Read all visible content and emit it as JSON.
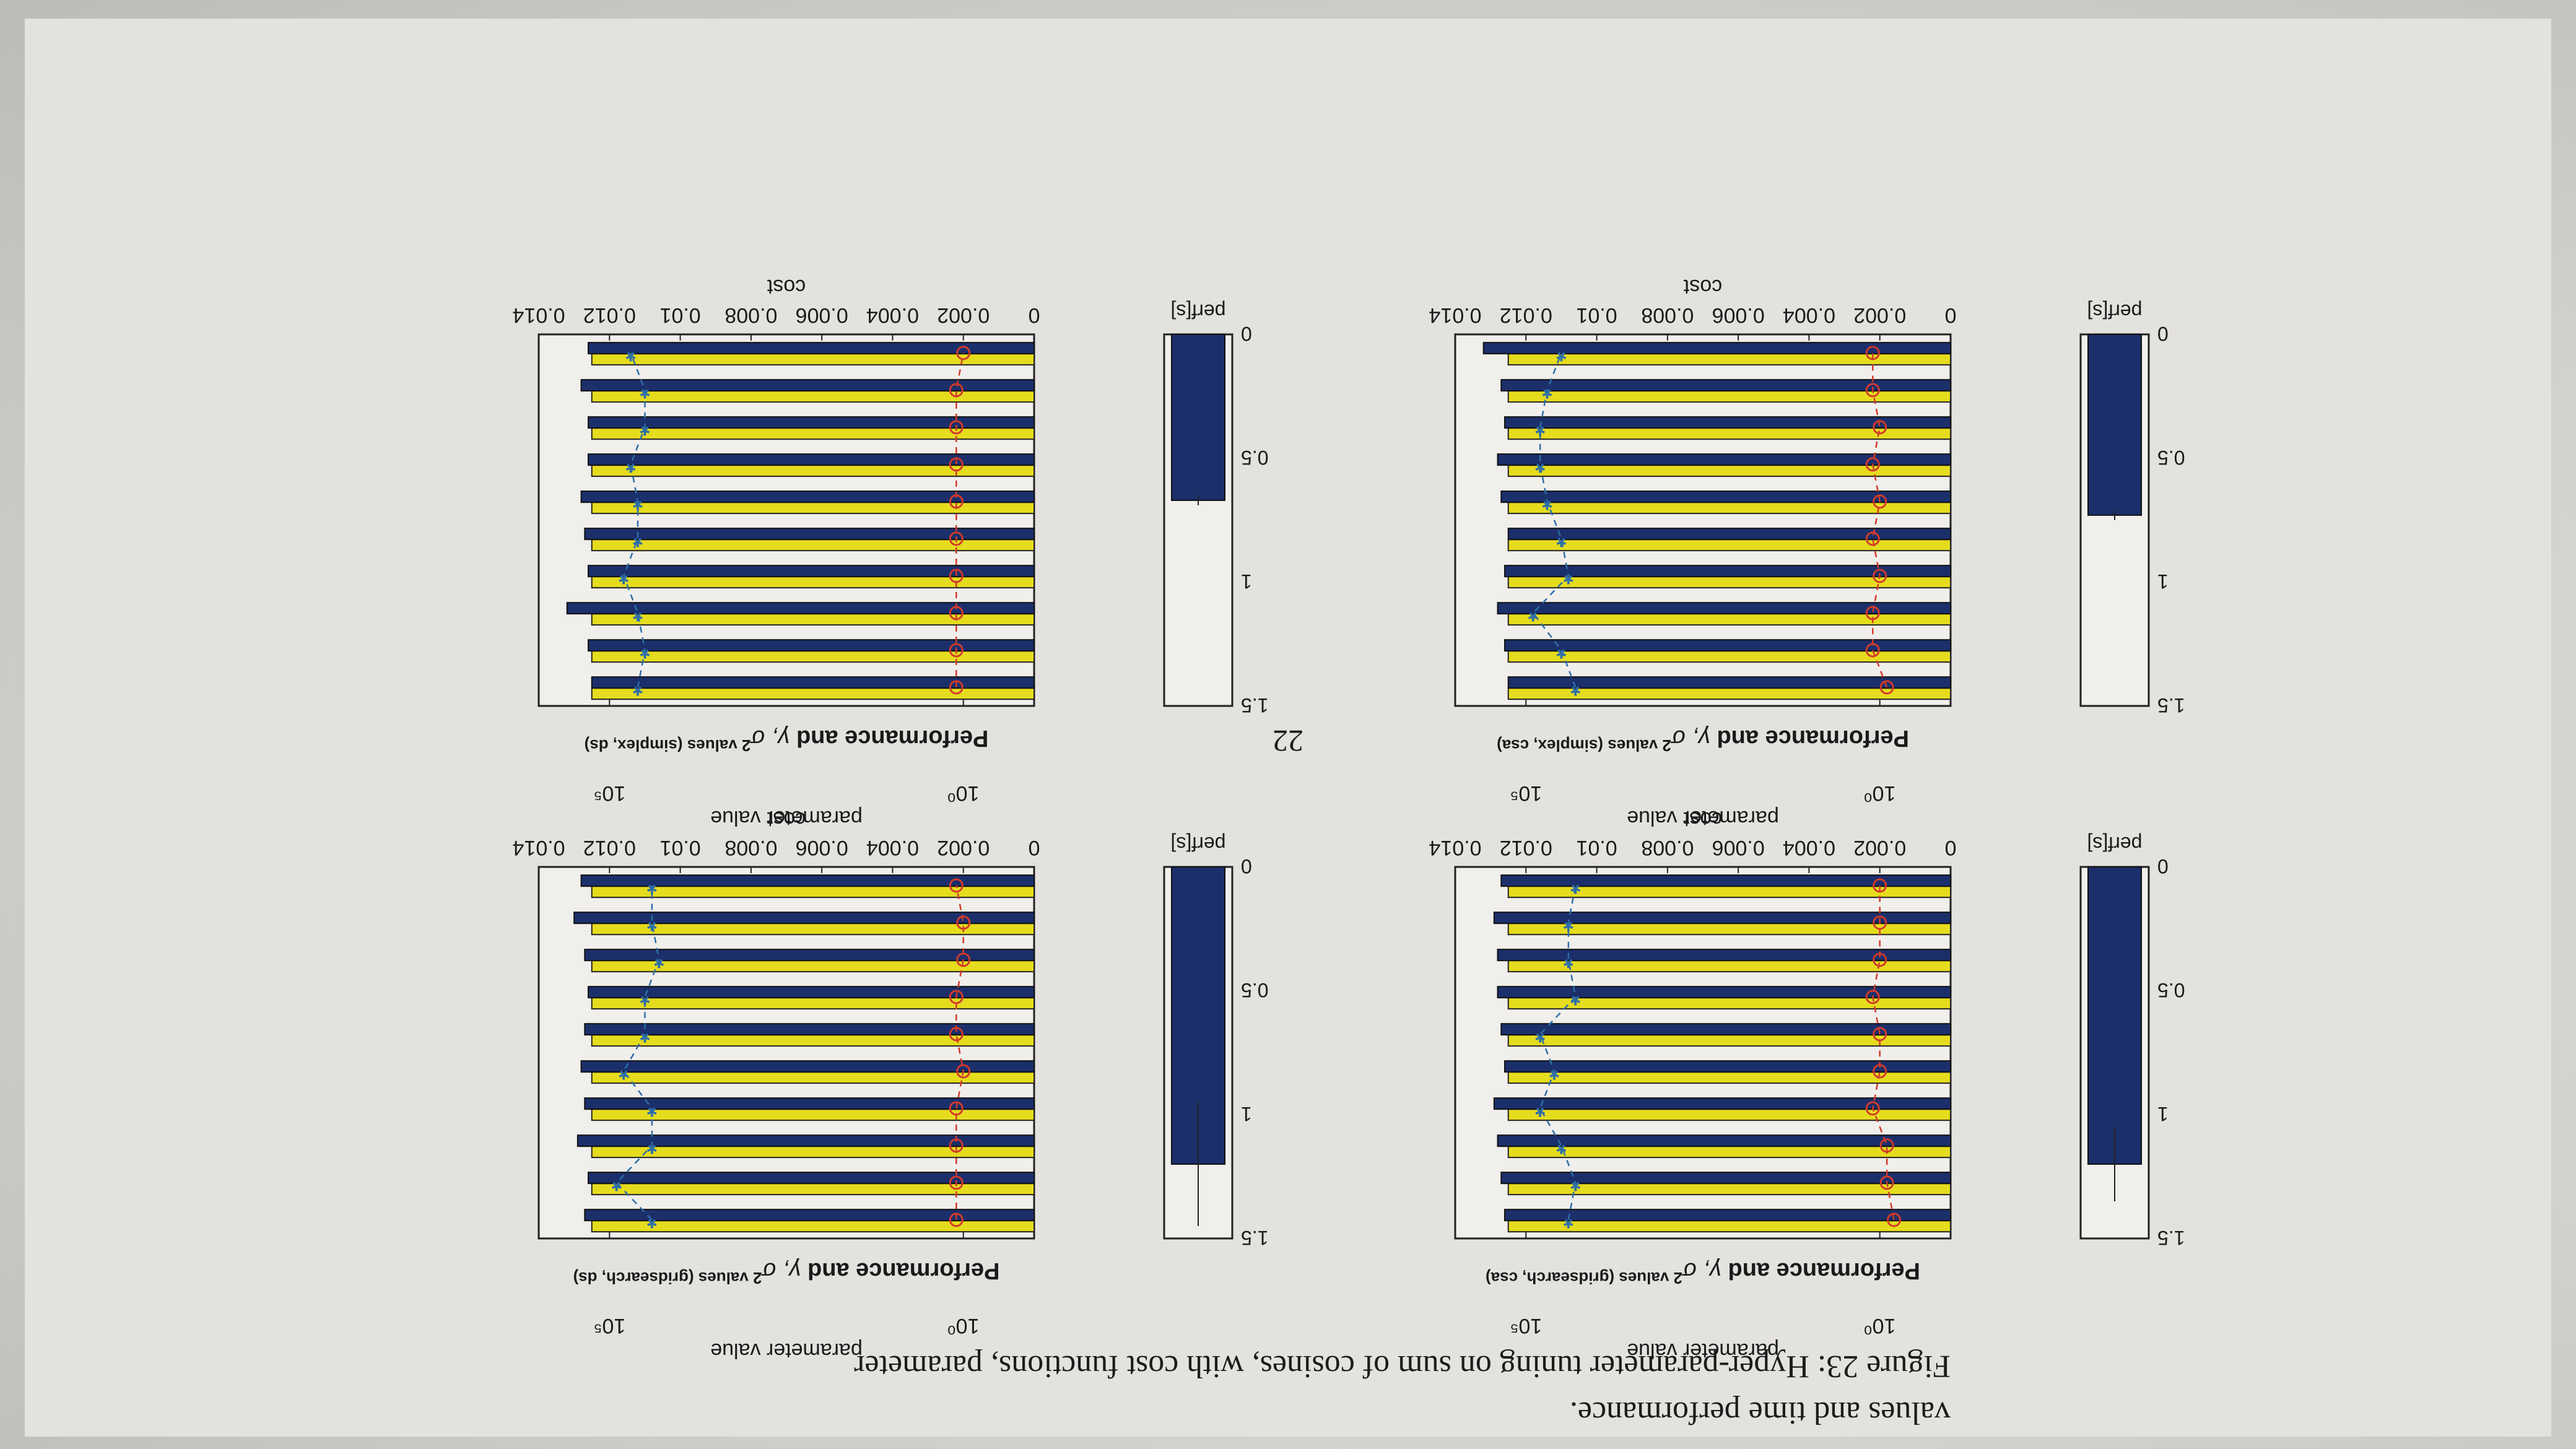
{
  "page": {
    "number": "22",
    "caption_line1": "Figure 23: Hyper-parameter tuning on sum of cosines, with cost functions, parameter",
    "caption_line2": "values and time performance."
  },
  "colors": {
    "yellow": "#e6dc1e",
    "navy": "#1b2f6b",
    "red": "#d23a2a",
    "blue": "#2d6fa8",
    "frame": "#222222"
  },
  "panels": [
    {
      "title_prefix": "Performance and ",
      "title_sym": "γ, σ",
      "title_suffix": "2 values (gridsearch, csa)",
      "cost_label": "cost",
      "param_label": "parameter value",
      "perf_label": "perf[s]",
      "cost_ticks": [
        "0",
        "0.002",
        "0.004",
        "0.006",
        "0.008",
        "0.01",
        "0.012",
        "0.014"
      ],
      "param_ticks": [
        "10⁰",
        "10⁵"
      ],
      "perf_ticks": [
        "0",
        "0.5",
        "1",
        "1.5"
      ]
    },
    {
      "title_prefix": "Performance and ",
      "title_sym": "γ, σ",
      "title_suffix": "2 values (gridsearch, ds)",
      "cost_label": "cost",
      "param_label": "parameter value",
      "perf_label": "perf[s]",
      "cost_ticks": [
        "0",
        "0.002",
        "0.004",
        "0.006",
        "0.008",
        "0.01",
        "0.012",
        "0.014"
      ],
      "param_ticks": [
        "10⁰",
        "10⁵"
      ],
      "perf_ticks": [
        "0",
        "0.5",
        "1",
        "1.5"
      ]
    },
    {
      "title_prefix": "Performance and ",
      "title_sym": "γ, σ",
      "title_suffix": "2 values (simplex, csa)",
      "cost_label": "cost",
      "param_label": "parameter value",
      "perf_label": "perf[s]",
      "cost_ticks": [
        "0",
        "0.002",
        "0.004",
        "0.006",
        "0.008",
        "0.01",
        "0.012",
        "0.014"
      ],
      "param_ticks": [
        "10⁰",
        "10⁵"
      ],
      "perf_ticks": [
        "0",
        "0.5",
        "1",
        "1.5"
      ]
    },
    {
      "title_prefix": "Performance and ",
      "title_sym": "γ, σ",
      "title_suffix": "2 values (simplex, ds)",
      "cost_label": "cost",
      "param_label": "parameter value",
      "perf_label": "perf[s]",
      "cost_ticks": [
        "0",
        "0.002",
        "0.004",
        "0.006",
        "0.008",
        "0.01",
        "0.012",
        "0.014"
      ],
      "param_ticks": [
        "10⁰",
        "10⁵"
      ],
      "perf_ticks": [
        "0",
        "0.5",
        "1",
        "1.5"
      ]
    }
  ],
  "chart_data": [
    {
      "type": "bar",
      "title": "Performance and γ, σ2 values (gridsearch, csa)",
      "xlabel": "cost",
      "ylabel": "parameter value",
      "xlim": [
        0,
        0.014
      ],
      "yscale": "log",
      "series": [
        {
          "values": [
            0.0125,
            0.0125,
            0.0125,
            0.0125,
            0.0125,
            0.0125,
            0.0125,
            0.0125,
            0.0125,
            0.0125
          ]
        },
        {
          "values": [
            0.0126,
            0.0127,
            0.0128,
            0.0129,
            0.0126,
            0.0127,
            0.0128,
            0.0128,
            0.0129,
            0.0127
          ]
        }
      ],
      "param_sigma_exp": [
        4.4,
        4.3,
        4.5,
        4.8,
        4.6,
        4.8,
        4.3,
        4.4,
        4.4,
        4.3
      ],
      "param_gamma_exp": [
        -0.2,
        -0.1,
        -0.1,
        0.1,
        0.0,
        0.0,
        0.1,
        0.0,
        0.0,
        0.0
      ],
      "perf": {
        "value": 1.2,
        "error": 0.15
      }
    },
    {
      "type": "bar",
      "title": "Performance and γ, σ2 values (gridsearch, ds)",
      "xlabel": "cost",
      "ylabel": "parameter value",
      "xlim": [
        0,
        0.014
      ],
      "yscale": "log",
      "series": [
        {
          "values": [
            0.0125,
            0.0125,
            0.0125,
            0.0125,
            0.0125,
            0.0125,
            0.0125,
            0.0125,
            0.0125,
            0.0125
          ]
        },
        {
          "values": [
            0.0127,
            0.0126,
            0.0129,
            0.0127,
            0.0128,
            0.0127,
            0.0126,
            0.0127,
            0.013,
            0.0128
          ]
        }
      ],
      "param_sigma_exp": [
        4.4,
        4.9,
        4.4,
        4.4,
        4.8,
        4.5,
        4.5,
        4.3,
        4.4,
        4.4
      ],
      "param_gamma_exp": [
        0.1,
        0.1,
        0.1,
        0.1,
        0.0,
        0.1,
        0.1,
        0.0,
        0.0,
        0.1
      ],
      "perf": {
        "value": 1.2,
        "error": 0.25
      }
    },
    {
      "type": "bar",
      "title": "Performance and γ, σ2 values (simplex, csa)",
      "xlabel": "cost",
      "ylabel": "parameter value",
      "xlim": [
        0,
        0.014
      ],
      "yscale": "log",
      "series": [
        {
          "values": [
            0.0125,
            0.0125,
            0.0125,
            0.0125,
            0.0125,
            0.0125,
            0.0125,
            0.0125,
            0.0125,
            0.0125
          ]
        },
        {
          "values": [
            0.0125,
            0.0126,
            0.0128,
            0.0126,
            0.0125,
            0.0127,
            0.0128,
            0.0126,
            0.0127,
            0.0132
          ]
        }
      ],
      "param_sigma_exp": [
        4.3,
        4.5,
        4.9,
        4.4,
        4.5,
        4.7,
        4.8,
        4.8,
        4.7,
        4.5
      ],
      "param_gamma_exp": [
        -0.1,
        0.1,
        0.1,
        0.0,
        0.1,
        0.0,
        0.1,
        0.0,
        0.1,
        0.1
      ],
      "perf": {
        "value": 0.73,
        "error": 0.02
      }
    },
    {
      "type": "bar",
      "title": "Performance and γ, σ2 values (simplex, ds)",
      "xlabel": "cost",
      "ylabel": "parameter value",
      "xlim": [
        0,
        0.014
      ],
      "yscale": "log",
      "series": [
        {
          "values": [
            0.0125,
            0.0125,
            0.0125,
            0.0125,
            0.0125,
            0.0125,
            0.0125,
            0.0125,
            0.0125,
            0.0125
          ]
        },
        {
          "values": [
            0.0125,
            0.0126,
            0.0132,
            0.0126,
            0.0127,
            0.0128,
            0.0126,
            0.0126,
            0.0128,
            0.0126
          ]
        }
      ],
      "param_sigma_exp": [
        4.6,
        4.5,
        4.6,
        4.8,
        4.6,
        4.6,
        4.7,
        4.5,
        4.5,
        4.7
      ],
      "param_gamma_exp": [
        0.1,
        0.1,
        0.1,
        0.1,
        0.1,
        0.1,
        0.1,
        0.1,
        0.1,
        0.0
      ],
      "perf": {
        "value": 0.67,
        "error": 0.02
      }
    }
  ]
}
